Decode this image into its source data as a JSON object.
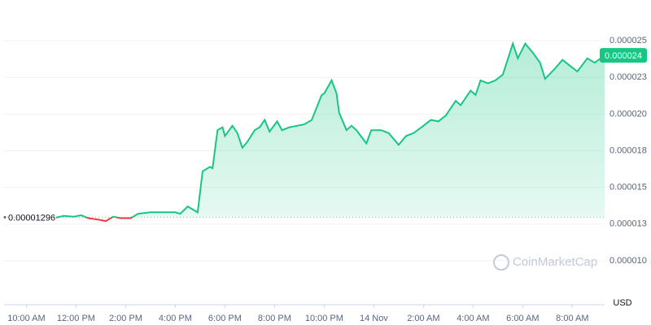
{
  "chart_data": {
    "type": "line",
    "currency": "USD",
    "watermark": "CoinMarketCap",
    "reference": {
      "value": 1.296e-05,
      "label": "0.00001296"
    },
    "current": {
      "value": 2.4e-05,
      "label": "0.000024"
    },
    "series": [
      {
        "color": "#16c784",
        "below_color": "#ea3943",
        "x": [
          1.2,
          1.5,
          1.9,
          2.2,
          2.5,
          2.9,
          3.2,
          3.5,
          3.8,
          4.2,
          4.5,
          5.0,
          5.5,
          6.0,
          6.2,
          6.5,
          6.9,
          7.1,
          7.4,
          7.5,
          7.7,
          7.9,
          8.0,
          8.3,
          8.5,
          8.7,
          8.9,
          9.2,
          9.4,
          9.6,
          9.8,
          10.1,
          10.3,
          10.6,
          10.9,
          11.2,
          11.5,
          11.9,
          12.0,
          12.3,
          12.5,
          12.6,
          12.9,
          13.1,
          13.3,
          13.7,
          13.9,
          14.3,
          14.6,
          15.0,
          15.3,
          15.6,
          16.0,
          16.3,
          16.6,
          16.9,
          17.3,
          17.5,
          17.9,
          18.1,
          18.3,
          18.6,
          18.9,
          19.2,
          19.6,
          19.8,
          20.1,
          20.4,
          20.7,
          20.9,
          21.3,
          21.6,
          21.9,
          22.2,
          22.6,
          22.9,
          23.3
        ],
        "values": [
          1.294e-05,
          1.306e-05,
          1.3e-05,
          1.31e-05,
          1.29e-05,
          1.28e-05,
          1.27e-05,
          1.3e-05,
          1.29e-05,
          1.29e-05,
          1.32e-05,
          1.33e-05,
          1.33e-05,
          1.33e-05,
          1.32e-05,
          1.37e-05,
          1.33e-05,
          1.61e-05,
          1.64e-05,
          1.63e-05,
          1.89e-05,
          1.91e-05,
          1.85e-05,
          1.92e-05,
          1.87e-05,
          1.77e-05,
          1.81e-05,
          1.89e-05,
          1.91e-05,
          1.96e-05,
          1.88e-05,
          1.95e-05,
          1.89e-05,
          1.91e-05,
          1.92e-05,
          1.93e-05,
          1.96e-05,
          2.13e-05,
          2.14e-05,
          2.23e-05,
          2.14e-05,
          2.01e-05,
          1.89e-05,
          1.92e-05,
          1.89e-05,
          1.8e-05,
          1.89e-05,
          1.89e-05,
          1.87e-05,
          1.79e-05,
          1.85e-05,
          1.87e-05,
          1.92e-05,
          1.96e-05,
          1.95e-05,
          1.99e-05,
          2.09e-05,
          2.06e-05,
          2.16e-05,
          2.13e-05,
          2.23e-05,
          2.21e-05,
          2.23e-05,
          2.27e-05,
          2.48e-05,
          2.38e-05,
          2.48e-05,
          2.42e-05,
          2.35e-05,
          2.24e-05,
          2.31e-05,
          2.37e-05,
          2.33e-05,
          2.29e-05,
          2.38e-05,
          2.35e-05,
          2.4e-05
        ]
      }
    ],
    "xlim": [
      -0.9,
      23.3
    ],
    "xticks": [
      {
        "value": 0,
        "label": "10:00 AM"
      },
      {
        "value": 2,
        "label": "12:00 PM"
      },
      {
        "value": 4,
        "label": "2:00 PM"
      },
      {
        "value": 6,
        "label": "4:00 PM"
      },
      {
        "value": 8,
        "label": "6:00 PM"
      },
      {
        "value": 10,
        "label": "8:00 PM"
      },
      {
        "value": 12,
        "label": "10:00 PM"
      },
      {
        "value": 14,
        "label": "14 Nov"
      },
      {
        "value": 16,
        "label": "2:00 AM"
      },
      {
        "value": 18,
        "label": "4:00 AM"
      },
      {
        "value": 20,
        "label": "6:00 AM"
      },
      {
        "value": 22,
        "label": "8:00 AM"
      }
    ],
    "ylim": [
      7e-06,
      2.75e-05
    ],
    "yticks": [
      {
        "value": 1e-05,
        "label": "0.000010"
      },
      {
        "value": 1.25e-05,
        "label": "0.000013"
      },
      {
        "value": 1.5e-05,
        "label": "0.000015"
      },
      {
        "value": 1.75e-05,
        "label": "0.000018"
      },
      {
        "value": 2e-05,
        "label": "0.000020"
      },
      {
        "value": 2.25e-05,
        "label": "0.000023"
      },
      {
        "value": 2.5e-05,
        "label": "0.000025"
      }
    ],
    "grid": true
  }
}
